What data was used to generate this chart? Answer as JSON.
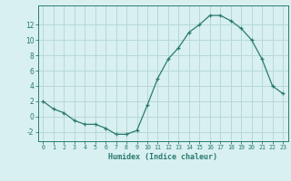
{
  "x": [
    0,
    1,
    2,
    3,
    4,
    5,
    6,
    7,
    8,
    9,
    10,
    11,
    12,
    13,
    14,
    15,
    16,
    17,
    18,
    19,
    20,
    21,
    22,
    23
  ],
  "y": [
    2,
    1,
    0.5,
    -0.5,
    -1,
    -1,
    -1.5,
    -2.3,
    -2.3,
    -1.8,
    1.5,
    5,
    7.5,
    9,
    11,
    12,
    13.2,
    13.2,
    12.5,
    11.5,
    10,
    7.5,
    4,
    3
  ],
  "line_color": "#2a7a6f",
  "marker": "+",
  "bg_color": "#d8f0f0",
  "grid_color": "#b8d8d8",
  "xlabel": "Humidex (Indice chaleur)",
  "xlim": [
    -0.5,
    23.5
  ],
  "ylim": [
    -3.2,
    14.5
  ],
  "yticks": [
    -2,
    0,
    2,
    4,
    6,
    8,
    10,
    12
  ],
  "xticks": [
    0,
    1,
    2,
    3,
    4,
    5,
    6,
    7,
    8,
    9,
    10,
    11,
    12,
    13,
    14,
    15,
    16,
    17,
    18,
    19,
    20,
    21,
    22,
    23
  ]
}
